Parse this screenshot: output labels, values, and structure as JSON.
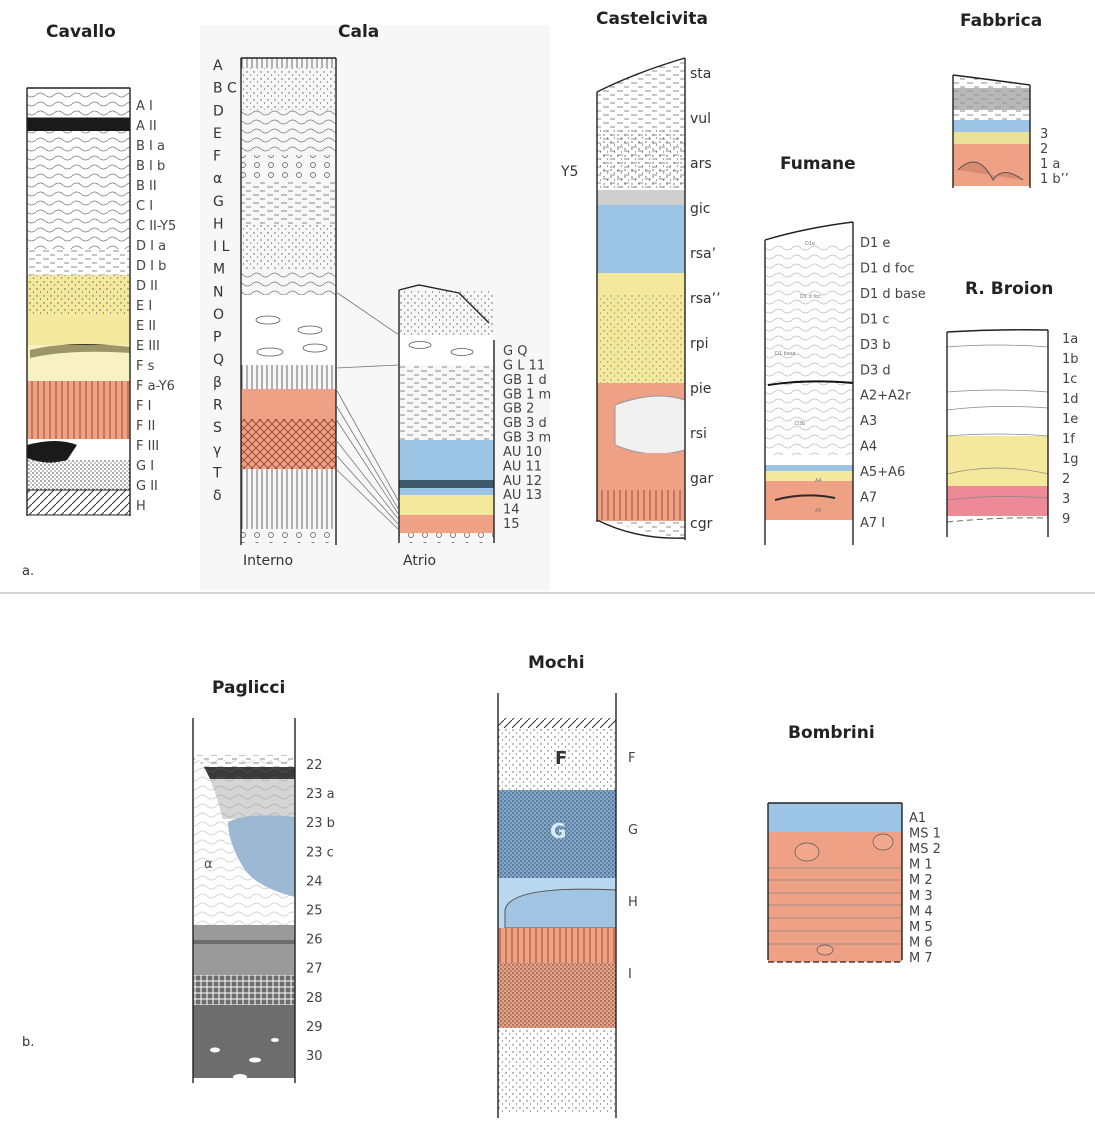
{
  "panels": {
    "a": "a.",
    "b": "b."
  },
  "sites": {
    "cavallo": {
      "title": "Cavallo",
      "labels": [
        "A I",
        "A II",
        "B I a",
        "B I b",
        "B II",
        "C I",
        "C II-Y5",
        "D I a",
        "D I b",
        "D II",
        "E I",
        "E II",
        "E III",
        "F s",
        "F a-Y6",
        "F I",
        "F II",
        "F III",
        "G I",
        "G II",
        "H"
      ]
    },
    "cala": {
      "title": "Cala",
      "interno_labels": [
        "A",
        "B C",
        "D",
        "E",
        "F",
        "α",
        "G",
        "H",
        "I L",
        "M",
        "N",
        "O",
        "P",
        "Q",
        "β",
        "R",
        "S",
        "γ",
        "T",
        "δ"
      ],
      "atrio_labels": [
        "G Q",
        "G L 11",
        "GB 1 d",
        "GB 1 m",
        "GB 2",
        "GB 3 d",
        "GB 3 m",
        "AU 10",
        "AU 11",
        "AU 12",
        "AU 13",
        "14",
        "15"
      ],
      "interno_caption": "Interno",
      "atrio_caption": "Atrio"
    },
    "castelcivita": {
      "title": "Castelcivita",
      "side_label": "Y5",
      "labels": [
        "sta",
        "vul",
        "ars",
        "gic",
        "rsa’",
        "rsa’’",
        "rpi",
        "pie",
        "rsi",
        "gar",
        "cgr"
      ]
    },
    "fumane": {
      "title": "Fumane",
      "labels": [
        "D1 e",
        "D1 d foc",
        "D1 d base",
        "D1 c",
        "D3 b",
        "D3 d",
        "A2+A2r",
        "A3",
        "A4",
        "A5+A6",
        "A7",
        "A7 I"
      ],
      "inner_labels": [
        "D1e",
        "D1 d foc",
        "D1 base",
        "D3b",
        "A4",
        "A5"
      ]
    },
    "fabbrica": {
      "title": "Fabbrica",
      "labels": [
        "3",
        "2",
        "1 a",
        "1 b’’"
      ]
    },
    "broion": {
      "title": "R. Broion",
      "labels": [
        "1a",
        "1b",
        "1c",
        "1d",
        "1e",
        "1f",
        "1g",
        "2",
        "3",
        "9"
      ]
    },
    "paglicci": {
      "title": "Paglicci",
      "labels": [
        "22",
        "23 a",
        "23 b",
        "23 c",
        "24",
        "25",
        "26",
        "27",
        "28",
        "29",
        "30"
      ],
      "inner_mark": "α"
    },
    "mochi": {
      "title": "Mochi",
      "labels": [
        "F",
        "G",
        "H",
        "I"
      ],
      "inner_labels": [
        "F",
        "G"
      ]
    },
    "bombrini": {
      "title": "Bombrini",
      "labels": [
        "A1",
        "MS 1",
        "MS 2",
        "M 1",
        "M 2",
        "M 3",
        "M 4",
        "M 5",
        "M 6",
        "M 7"
      ],
      "inner_labels": [
        "A1",
        "MS1",
        "MS2",
        "M1",
        "M2",
        "M3",
        "M4",
        "M5",
        "M6",
        "M7"
      ]
    }
  },
  "colors": {
    "yellow": "#f3e89c",
    "salmon": "#eea184",
    "blue": "#9cc4e4",
    "lightblue": "#b9d7ef",
    "grey": "#9a9a9a",
    "darkgrey": "#6d6d6d",
    "pink": "#ee8a98",
    "black": "#1a1a1a"
  }
}
